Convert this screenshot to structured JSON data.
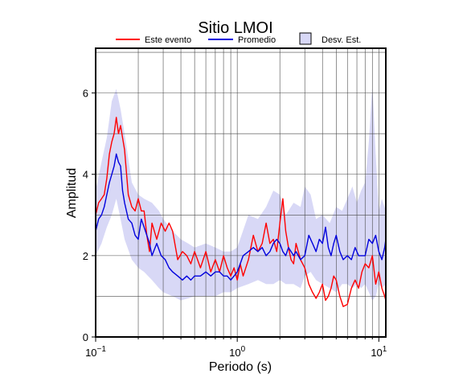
{
  "chart_data": {
    "type": "line",
    "title": "Sitio LMOI",
    "xlabel": "Periodo (s)",
    "ylabel": "Amplitud",
    "x_scale": "log",
    "xlim": [
      0.1,
      11.2
    ],
    "ylim": [
      0,
      7.1
    ],
    "x_ticks": [
      {
        "value": 0.1,
        "base": "10",
        "exp": "−1"
      },
      {
        "value": 1,
        "base": "10",
        "exp": "0"
      },
      {
        "value": 10,
        "base": "10",
        "exp": "1"
      }
    ],
    "y_ticks": [
      0,
      2,
      4,
      6
    ],
    "grid": true,
    "legend": {
      "placement": "top",
      "items": [
        {
          "label": "Este evento",
          "kind": "line",
          "color": "#ff0000"
        },
        {
          "label": "Promedio",
          "kind": "line",
          "color": "#0000dd"
        },
        {
          "label": "Desv. Est.",
          "kind": "box",
          "color": "#d8d8f6"
        }
      ]
    },
    "band": {
      "name": "Desv. Est.",
      "color": "#d8d8f6",
      "x": [
        0.1,
        0.11,
        0.12,
        0.13,
        0.14,
        0.15,
        0.16,
        0.18,
        0.2,
        0.22,
        0.25,
        0.28,
        0.3,
        0.35,
        0.4,
        0.45,
        0.5,
        0.6,
        0.7,
        0.8,
        0.9,
        1.0,
        1.2,
        1.4,
        1.6,
        1.8,
        2.0,
        2.2,
        2.5,
        2.8,
        3.0,
        3.3,
        3.6,
        4.0,
        4.5,
        5.0,
        5.5,
        6.0,
        6.5,
        7.0,
        7.5,
        8.0,
        8.5,
        9.0,
        9.5,
        10.0,
        10.5,
        11.2
      ],
      "upper": [
        3.6,
        4.3,
        4.9,
        5.8,
        6.1,
        5.6,
        5.0,
        3.8,
        3.5,
        3.4,
        3.3,
        3.1,
        2.9,
        2.6,
        2.4,
        2.3,
        2.2,
        2.3,
        2.2,
        2.1,
        2.1,
        2.2,
        3.0,
        2.9,
        3.2,
        3.6,
        3.5,
        3.0,
        3.3,
        3.2,
        3.7,
        3.5,
        2.9,
        3.0,
        2.8,
        3.2,
        3.1,
        3.4,
        3.7,
        3.3,
        3.6,
        3.8,
        4.8,
        6.2,
        4.5,
        3.1,
        3.4,
        3.1
      ],
      "lower": [
        2.0,
        2.3,
        2.7,
        3.0,
        3.4,
        2.9,
        2.4,
        1.9,
        1.7,
        1.6,
        1.4,
        1.2,
        1.1,
        1.0,
        0.9,
        0.95,
        1.0,
        1.0,
        1.0,
        1.1,
        1.1,
        1.2,
        1.3,
        1.4,
        1.3,
        1.3,
        1.4,
        1.3,
        1.3,
        1.2,
        1.5,
        1.6,
        1.4,
        1.3,
        1.2,
        1.1,
        1.3,
        1.3,
        1.2,
        1.3,
        1.2,
        1.3,
        1.1,
        0.9,
        1.0,
        1.3,
        1.2,
        1.3
      ]
    },
    "series": [
      {
        "name": "Este evento",
        "color": "#ff0000",
        "x": [
          0.1,
          0.105,
          0.11,
          0.115,
          0.12,
          0.125,
          0.13,
          0.135,
          0.14,
          0.145,
          0.15,
          0.155,
          0.16,
          0.17,
          0.18,
          0.19,
          0.2,
          0.21,
          0.22,
          0.23,
          0.24,
          0.25,
          0.27,
          0.29,
          0.31,
          0.33,
          0.35,
          0.38,
          0.41,
          0.44,
          0.47,
          0.5,
          0.55,
          0.6,
          0.65,
          0.7,
          0.75,
          0.8,
          0.85,
          0.9,
          0.95,
          1.0,
          1.05,
          1.1,
          1.2,
          1.3,
          1.4,
          1.5,
          1.6,
          1.7,
          1.8,
          1.9,
          2.0,
          2.1,
          2.2,
          2.3,
          2.4,
          2.5,
          2.6,
          2.8,
          3.0,
          3.2,
          3.4,
          3.6,
          3.8,
          4.0,
          4.2,
          4.4,
          4.6,
          4.8,
          5.0,
          5.3,
          5.6,
          6.0,
          6.4,
          6.8,
          7.2,
          7.6,
          8.0,
          8.5,
          9.0,
          9.5,
          10.0,
          10.5,
          11.0,
          11.2
        ],
        "y": [
          3.0,
          3.3,
          3.4,
          3.5,
          3.9,
          4.5,
          4.8,
          5.0,
          5.4,
          5.0,
          5.2,
          4.9,
          4.6,
          3.5,
          3.2,
          3.1,
          3.4,
          3.1,
          3.1,
          2.5,
          2.1,
          2.8,
          2.4,
          2.8,
          2.6,
          2.8,
          2.6,
          1.9,
          2.1,
          2.0,
          1.8,
          2.1,
          1.7,
          2.1,
          1.6,
          1.9,
          1.6,
          2.0,
          1.7,
          1.5,
          1.7,
          1.4,
          1.8,
          1.5,
          1.9,
          2.5,
          2.1,
          2.3,
          2.8,
          2.3,
          2.4,
          2.1,
          2.8,
          3.4,
          2.6,
          2.2,
          1.9,
          1.8,
          2.3,
          1.9,
          1.7,
          1.3,
          1.1,
          0.95,
          1.1,
          1.3,
          0.9,
          1.0,
          1.2,
          1.5,
          1.4,
          1.0,
          0.75,
          0.8,
          1.2,
          1.4,
          1.2,
          1.6,
          1.8,
          1.7,
          2.0,
          1.3,
          1.6,
          1.2,
          1.0,
          0.9
        ]
      },
      {
        "name": "Promedio",
        "color": "#0000dd",
        "x": [
          0.1,
          0.105,
          0.11,
          0.115,
          0.12,
          0.125,
          0.13,
          0.135,
          0.14,
          0.145,
          0.15,
          0.155,
          0.16,
          0.17,
          0.18,
          0.19,
          0.2,
          0.21,
          0.22,
          0.23,
          0.24,
          0.25,
          0.27,
          0.29,
          0.31,
          0.33,
          0.35,
          0.38,
          0.41,
          0.44,
          0.47,
          0.5,
          0.55,
          0.6,
          0.65,
          0.7,
          0.75,
          0.8,
          0.85,
          0.9,
          0.95,
          1.0,
          1.05,
          1.1,
          1.2,
          1.3,
          1.4,
          1.5,
          1.6,
          1.7,
          1.8,
          1.9,
          2.0,
          2.1,
          2.2,
          2.3,
          2.4,
          2.5,
          2.6,
          2.8,
          3.0,
          3.2,
          3.4,
          3.6,
          3.8,
          4.0,
          4.2,
          4.4,
          4.6,
          4.8,
          5.0,
          5.3,
          5.6,
          6.0,
          6.4,
          6.8,
          7.2,
          7.6,
          8.0,
          8.5,
          9.0,
          9.5,
          10.0,
          10.5,
          11.0,
          11.2
        ],
        "y": [
          2.6,
          2.9,
          3.0,
          3.2,
          3.5,
          3.8,
          4.0,
          4.2,
          4.5,
          4.3,
          4.2,
          3.6,
          3.3,
          2.9,
          2.8,
          2.5,
          2.4,
          2.9,
          2.7,
          2.5,
          2.3,
          2.0,
          2.3,
          2.0,
          1.9,
          1.7,
          1.6,
          1.5,
          1.4,
          1.5,
          1.4,
          1.5,
          1.5,
          1.6,
          1.5,
          1.6,
          1.6,
          1.5,
          1.5,
          1.4,
          1.5,
          1.6,
          1.8,
          2.0,
          2.1,
          2.2,
          2.1,
          2.2,
          2.0,
          2.1,
          2.3,
          2.4,
          2.3,
          2.1,
          2.0,
          2.2,
          2.1,
          2.0,
          2.1,
          1.9,
          2.0,
          2.5,
          2.3,
          2.1,
          2.4,
          2.3,
          2.7,
          2.2,
          2.0,
          2.3,
          2.5,
          2.1,
          1.9,
          2.0,
          1.9,
          2.2,
          2.0,
          2.0,
          2.0,
          2.4,
          2.3,
          2.5,
          2.1,
          1.9,
          2.2,
          2.4
        ]
      }
    ]
  }
}
